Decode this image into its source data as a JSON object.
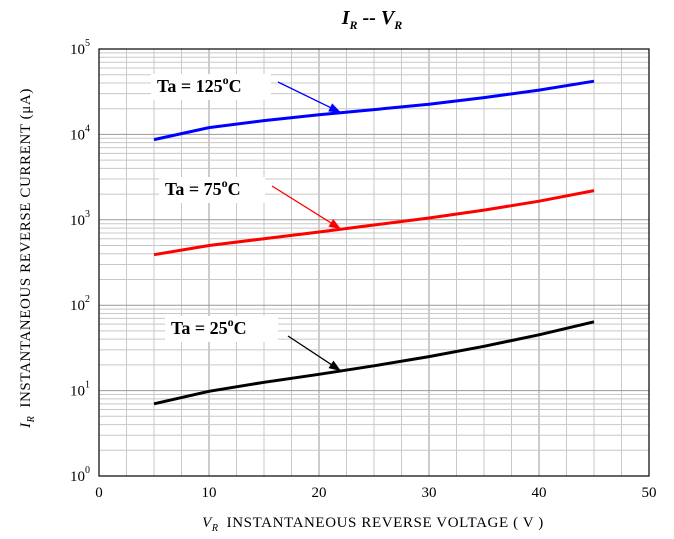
{
  "chart_data": {
    "type": "line",
    "title": {
      "main_1": "I",
      "sub_1": "R",
      "sep": " -- ",
      "main_2": "V",
      "sub_2": "R"
    },
    "xlabel": {
      "symbol": "V",
      "sub": "R",
      "text": "INSTANTANEOUS REVERSE VOLTAGE ( V )"
    },
    "ylabel": {
      "symbol": "I",
      "sub": "R",
      "text": "INSTANTANEOUS REVERSE CURRENT (μA)"
    },
    "xlim": [
      0,
      50
    ],
    "ylim": [
      1,
      100000
    ],
    "y_scale": "log",
    "grid": true,
    "x_ticks": [
      0,
      10,
      20,
      30,
      40,
      50
    ],
    "y_ticks": [
      {
        "base": "10",
        "exp": "0",
        "value": 1
      },
      {
        "base": "10",
        "exp": "1",
        "value": 10
      },
      {
        "base": "10",
        "exp": "2",
        "value": 100
      },
      {
        "base": "10",
        "exp": "3",
        "value": 1000
      },
      {
        "base": "10",
        "exp": "4",
        "value": 10000
      },
      {
        "base": "10",
        "exp": "5",
        "value": 100000
      }
    ],
    "series": [
      {
        "key": "t125",
        "color": "#0000ff",
        "label": {
          "prefix": "Ta = 125",
          "deg": "o",
          "suffix": "C"
        },
        "points": [
          [
            5,
            8700
          ],
          [
            10,
            12000
          ],
          [
            15,
            14500
          ],
          [
            20,
            17000
          ],
          [
            25,
            19500
          ],
          [
            30,
            22500
          ],
          [
            35,
            27000
          ],
          [
            40,
            33000
          ],
          [
            45,
            42000
          ]
        ]
      },
      {
        "key": "t75",
        "color": "#ff0000",
        "label": {
          "prefix": "Ta = 75",
          "deg": "o",
          "suffix": "C"
        },
        "points": [
          [
            5,
            390
          ],
          [
            10,
            500
          ],
          [
            15,
            600
          ],
          [
            20,
            720
          ],
          [
            25,
            870
          ],
          [
            30,
            1050
          ],
          [
            35,
            1300
          ],
          [
            40,
            1650
          ],
          [
            45,
            2200
          ]
        ]
      },
      {
        "key": "t25",
        "color": "#000000",
        "label": {
          "prefix": "Ta = 25",
          "deg": "o",
          "suffix": "C"
        },
        "points": [
          [
            5,
            7
          ],
          [
            10,
            9.8
          ],
          [
            15,
            12.5
          ],
          [
            20,
            15.5
          ],
          [
            25,
            19.5
          ],
          [
            30,
            25
          ],
          [
            35,
            33
          ],
          [
            40,
            45
          ],
          [
            45,
            64
          ]
        ]
      }
    ]
  }
}
